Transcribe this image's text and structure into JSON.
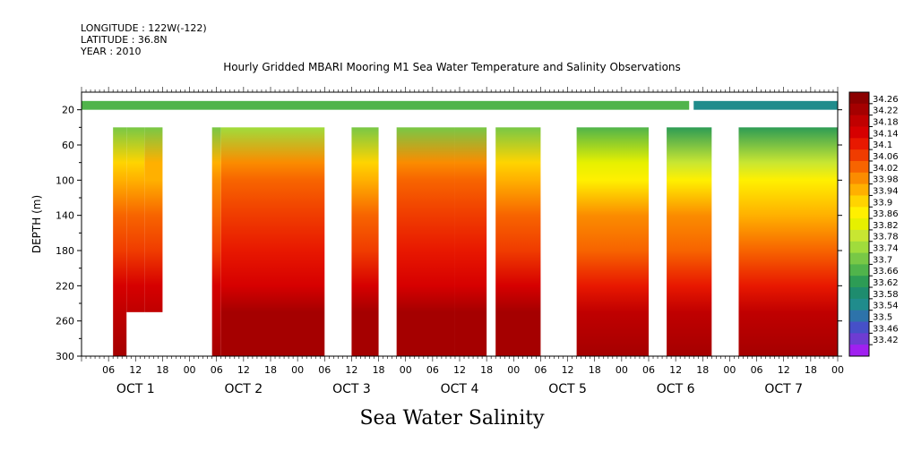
{
  "header": {
    "longitude": "LONGITUDE : 122W(-122)",
    "latitude": "LATITUDE : 36.8N",
    "year": "YEAR : 2010"
  },
  "footer_label": "Sea Water Salinity",
  "chart_data": {
    "type": "heatmap",
    "title": "Hourly Gridded MBARI Mooring M1 Sea Water Temperature and Salinity Observations",
    "ylabel": "DEPTH (m)",
    "ylim": [
      300,
      0
    ],
    "yticks": [
      20,
      60,
      100,
      140,
      180,
      220,
      260,
      300
    ],
    "xlim_hours": [
      0,
      168
    ],
    "xtick_labels": [
      "06",
      "12",
      "18",
      "00",
      "06",
      "12",
      "18",
      "00",
      "06",
      "12",
      "18",
      "00",
      "06",
      "12",
      "18",
      "00",
      "06",
      "12",
      "18",
      "00",
      "06",
      "12",
      "18",
      "00",
      "06",
      "12",
      "18",
      "00"
    ],
    "day_labels": [
      "OCT  1",
      "OCT  2",
      "OCT  3",
      "OCT  4",
      "OCT  5",
      "OCT  6",
      "OCT  7"
    ],
    "colorbar": {
      "levels": [
        34.26,
        34.22,
        34.18,
        34.14,
        34.1,
        34.06,
        34.02,
        33.98,
        33.94,
        33.9,
        33.86,
        33.82,
        33.78,
        33.74,
        33.7,
        33.66,
        33.62,
        33.58,
        33.54,
        33.5,
        33.46,
        33.42
      ],
      "colors": [
        "#8b0000",
        "#a50000",
        "#c00000",
        "#d60000",
        "#e81800",
        "#f03c00",
        "#f76400",
        "#fb8c00",
        "#ffb000",
        "#ffd400",
        "#fff000",
        "#e6f000",
        "#c8e632",
        "#a0dc3c",
        "#78c846",
        "#50b44b",
        "#2d9c55",
        "#1e8c6e",
        "#208c8c",
        "#2d73aa",
        "#4650c8",
        "#6e3cd2",
        "#a020f0"
      ]
    },
    "depth_levels": [
      20,
      40,
      80,
      100,
      140,
      180,
      220,
      250,
      300
    ],
    "segments": [
      {
        "hours": [
          7,
          10
        ],
        "depths": [
          40,
          300
        ],
        "salinity": [
          33.7,
          33.7,
          33.92,
          33.94,
          34.02,
          34.06,
          34.14,
          34.2,
          34.24
        ]
      },
      {
        "hours": [
          10,
          14
        ],
        "depths": [
          40,
          250
        ],
        "salinity": [
          33.7,
          33.7,
          33.92,
          33.94,
          34.02,
          34.06,
          34.14,
          34.2,
          34.24
        ]
      },
      {
        "hours": [
          14,
          18
        ],
        "depths": [
          40,
          250
        ],
        "salinity": [
          33.7,
          33.7,
          33.94,
          33.95,
          34.03,
          34.06,
          34.14,
          34.2,
          34.24
        ]
      },
      {
        "hours": [
          29,
          31
        ],
        "depths": [
          40,
          300
        ],
        "salinity": [
          33.7,
          33.7,
          33.94,
          33.98,
          34.04,
          34.08,
          34.14,
          34.2,
          34.24
        ]
      },
      {
        "hours": [
          31,
          54
        ],
        "depths": [
          40,
          300
        ],
        "salinity": [
          33.74,
          33.74,
          33.98,
          34.02,
          34.06,
          34.1,
          34.14,
          34.22,
          34.24
        ]
      },
      {
        "hours": [
          60,
          66
        ],
        "depths": [
          40,
          300
        ],
        "salinity": [
          33.7,
          33.7,
          33.92,
          33.96,
          34.04,
          34.08,
          34.14,
          34.22,
          34.24
        ]
      },
      {
        "hours": [
          70,
          83
        ],
        "depths": [
          40,
          300
        ],
        "salinity": [
          33.7,
          33.7,
          33.98,
          34.04,
          34.06,
          34.1,
          34.14,
          34.22,
          34.24
        ]
      },
      {
        "hours": [
          83,
          90
        ],
        "depths": [
          40,
          300
        ],
        "salinity": [
          33.7,
          33.7,
          33.98,
          34.04,
          34.06,
          34.1,
          34.14,
          34.22,
          34.24
        ]
      },
      {
        "hours": [
          92,
          102
        ],
        "depths": [
          40,
          300
        ],
        "salinity": [
          33.7,
          33.7,
          33.92,
          33.96,
          34.04,
          34.08,
          34.14,
          34.22,
          34.24
        ]
      },
      {
        "hours": [
          110,
          126
        ],
        "depths": [
          40,
          300
        ],
        "salinity": [
          33.66,
          33.66,
          33.82,
          33.88,
          33.98,
          34.04,
          34.12,
          34.2,
          34.24
        ]
      },
      {
        "hours": [
          130,
          140
        ],
        "depths": [
          40,
          300
        ],
        "salinity": [
          33.62,
          33.62,
          33.8,
          33.88,
          33.98,
          34.04,
          34.12,
          34.2,
          34.24
        ]
      },
      {
        "hours": [
          146,
          168
        ],
        "depths": [
          40,
          300
        ],
        "salinity": [
          33.62,
          33.62,
          33.8,
          33.86,
          33.96,
          34.04,
          34.12,
          34.2,
          34.24
        ]
      }
    ],
    "surface_bands": [
      {
        "hours": [
          0,
          135
        ],
        "depths": [
          10,
          20
        ],
        "salinity": 33.66
      },
      {
        "hours": [
          136,
          168
        ],
        "depths": [
          10,
          20
        ],
        "salinity": 33.54
      }
    ]
  }
}
